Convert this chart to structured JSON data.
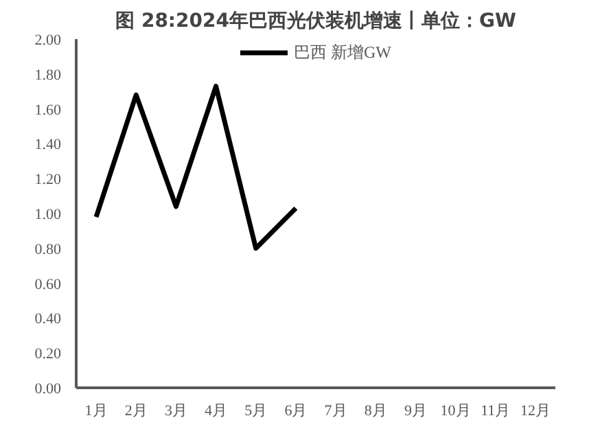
{
  "chart_data": {
    "type": "line",
    "title": "图 28:2024年巴西光伏装机增速丨单位：GW",
    "categories": [
      "1月",
      "2月",
      "3月",
      "4月",
      "5月",
      "6月",
      "7月",
      "8月",
      "9月",
      "10月",
      "11月",
      "12月"
    ],
    "series": [
      {
        "name": "巴西 新增GW",
        "color": "#000000",
        "values": [
          0.98,
          1.68,
          1.04,
          1.73,
          0.8,
          1.03,
          null,
          null,
          null,
          null,
          null,
          null
        ]
      }
    ],
    "ylim": [
      0,
      2
    ],
    "yticks": [
      {
        "value": 0,
        "label": "0.00"
      },
      {
        "value": 0.2,
        "label": "0.20"
      },
      {
        "value": 0.4,
        "label": "0.40"
      },
      {
        "value": 0.6,
        "label": "0.60"
      },
      {
        "value": 0.8,
        "label": "0.80"
      },
      {
        "value": 1.0,
        "label": "1.00"
      },
      {
        "value": 1.2,
        "label": "1.20"
      },
      {
        "value": 1.4,
        "label": "1.40"
      },
      {
        "value": 1.6,
        "label": "1.60"
      },
      {
        "value": 1.8,
        "label": "1.80"
      },
      {
        "value": 2.0,
        "label": "2.00"
      }
    ],
    "grid": false,
    "legend": "top",
    "marker": "none",
    "line_style": "solid"
  }
}
